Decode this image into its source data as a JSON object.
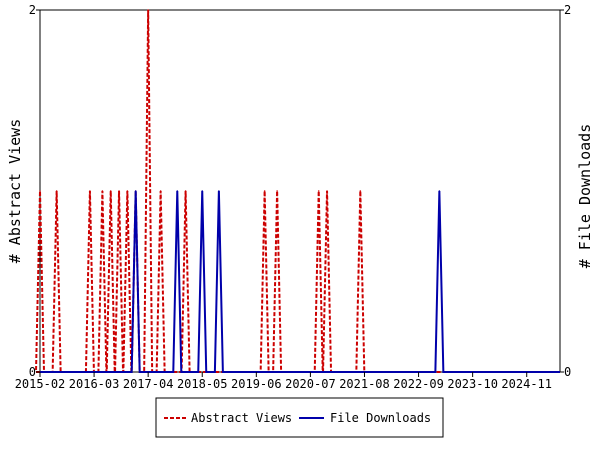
{
  "chart_data": {
    "type": "line",
    "x_ticks": [
      "2015-02",
      "2016-03",
      "2017-04",
      "2018-05",
      "2019-06",
      "2020-07",
      "2021-08",
      "2022-09",
      "2023-10",
      "2024-11"
    ],
    "ylabel_left": "# Abstract Views",
    "ylabel_right": "# File Downloads",
    "ylim_left": [
      0,
      2
    ],
    "ylim_right": [
      0,
      2
    ],
    "y_ticks_left": [
      "0",
      "2"
    ],
    "y_ticks_right": [
      "0",
      "2"
    ],
    "grid": false,
    "legend_position": "bottom",
    "series": [
      {
        "name": "Abstract Views",
        "axis": "left",
        "color": "#cc0000",
        "style": "dashed",
        "events": [
          {
            "x": "2015-02",
            "y": 1
          },
          {
            "x": "2015-06",
            "y": 1
          },
          {
            "x": "2016-02",
            "y": 1
          },
          {
            "x": "2016-05",
            "y": 1
          },
          {
            "x": "2016-07",
            "y": 1
          },
          {
            "x": "2016-09",
            "y": 1
          },
          {
            "x": "2016-11",
            "y": 1
          },
          {
            "x": "2017-01",
            "y": 1
          },
          {
            "x": "2017-04",
            "y": 2
          },
          {
            "x": "2017-07",
            "y": 1
          },
          {
            "x": "2018-01",
            "y": 1
          },
          {
            "x": "2019-08",
            "y": 1
          },
          {
            "x": "2019-11",
            "y": 1
          },
          {
            "x": "2020-09",
            "y": 1
          },
          {
            "x": "2020-11",
            "y": 1
          },
          {
            "x": "2021-07",
            "y": 1
          }
        ]
      },
      {
        "name": "File Downloads",
        "axis": "right",
        "color": "#0000aa",
        "style": "solid",
        "events": [
          {
            "x": "2017-01",
            "y": 1
          },
          {
            "x": "2017-11",
            "y": 1
          },
          {
            "x": "2018-05",
            "y": 1
          },
          {
            "x": "2018-09",
            "y": 1
          },
          {
            "x": "2023-02",
            "y": 1
          }
        ]
      }
    ]
  }
}
